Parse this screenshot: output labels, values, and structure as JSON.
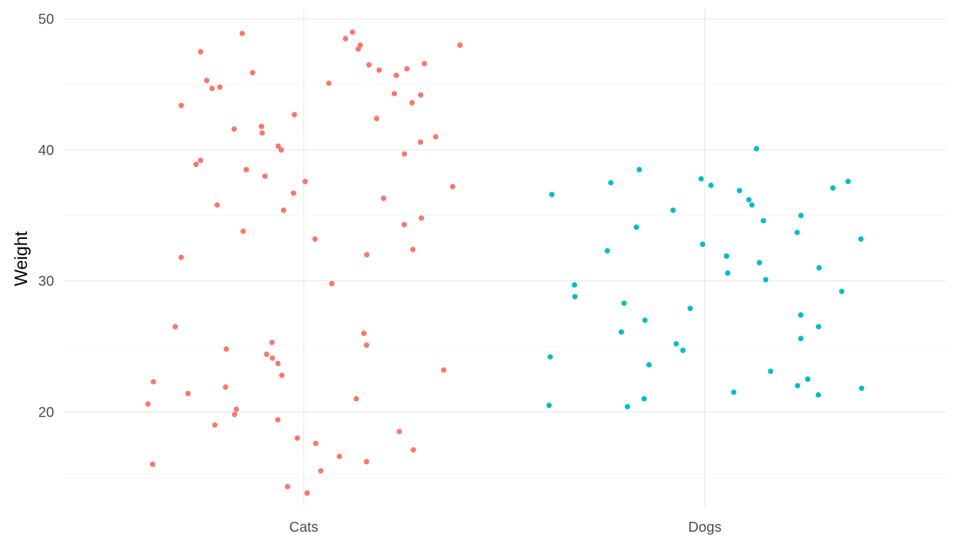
{
  "chart_data": {
    "type": "scatter",
    "title": "",
    "xlabel": "",
    "ylabel": "Weight",
    "categories": [
      "Cats",
      "Dogs"
    ],
    "ylim": [
      12.8,
      50.8
    ],
    "y_ticks": [
      20,
      30,
      40,
      50
    ],
    "y_tick_labels": [
      "20",
      "30",
      "40",
      "50"
    ],
    "grid": true,
    "legend": "none",
    "colors": {
      "Cats": "#f8766d",
      "Dogs": "#00bfc4"
    },
    "series": [
      {
        "category": "Cats",
        "distribution": "bimodal: upper cluster around 40, lower cluster around 20",
        "points": [
          {
            "x": "Cats",
            "y": 49.0
          },
          {
            "x": "Cats",
            "y": 48.9
          },
          {
            "x": "Cats",
            "y": 48.5
          },
          {
            "x": "Cats",
            "y": 48.0
          },
          {
            "x": "Cats",
            "y": 48.0
          },
          {
            "x": "Cats",
            "y": 47.7
          },
          {
            "x": "Cats",
            "y": 47.5
          },
          {
            "x": "Cats",
            "y": 46.6
          },
          {
            "x": "Cats",
            "y": 46.5
          },
          {
            "x": "Cats",
            "y": 46.2
          },
          {
            "x": "Cats",
            "y": 46.1
          },
          {
            "x": "Cats",
            "y": 45.9
          },
          {
            "x": "Cats",
            "y": 45.7
          },
          {
            "x": "Cats",
            "y": 45.3
          },
          {
            "x": "Cats",
            "y": 45.1
          },
          {
            "x": "Cats",
            "y": 44.8
          },
          {
            "x": "Cats",
            "y": 44.7
          },
          {
            "x": "Cats",
            "y": 44.3
          },
          {
            "x": "Cats",
            "y": 44.2
          },
          {
            "x": "Cats",
            "y": 43.6
          },
          {
            "x": "Cats",
            "y": 43.4
          },
          {
            "x": "Cats",
            "y": 42.7
          },
          {
            "x": "Cats",
            "y": 42.4
          },
          {
            "x": "Cats",
            "y": 41.8
          },
          {
            "x": "Cats",
            "y": 41.6
          },
          {
            "x": "Cats",
            "y": 41.3
          },
          {
            "x": "Cats",
            "y": 41.0
          },
          {
            "x": "Cats",
            "y": 40.6
          },
          {
            "x": "Cats",
            "y": 40.3
          },
          {
            "x": "Cats",
            "y": 40.0
          },
          {
            "x": "Cats",
            "y": 39.7
          },
          {
            "x": "Cats",
            "y": 39.2
          },
          {
            "x": "Cats",
            "y": 38.9
          },
          {
            "x": "Cats",
            "y": 38.5
          },
          {
            "x": "Cats",
            "y": 38.0
          },
          {
            "x": "Cats",
            "y": 37.6
          },
          {
            "x": "Cats",
            "y": 37.2
          },
          {
            "x": "Cats",
            "y": 36.7
          },
          {
            "x": "Cats",
            "y": 36.3
          },
          {
            "x": "Cats",
            "y": 35.8
          },
          {
            "x": "Cats",
            "y": 35.4
          },
          {
            "x": "Cats",
            "y": 34.8
          },
          {
            "x": "Cats",
            "y": 34.3
          },
          {
            "x": "Cats",
            "y": 33.8
          },
          {
            "x": "Cats",
            "y": 33.2
          },
          {
            "x": "Cats",
            "y": 32.4
          },
          {
            "x": "Cats",
            "y": 32.0
          },
          {
            "x": "Cats",
            "y": 31.8
          },
          {
            "x": "Cats",
            "y": 29.8
          },
          {
            "x": "Cats",
            "y": 26.5
          },
          {
            "x": "Cats",
            "y": 26.0
          },
          {
            "x": "Cats",
            "y": 25.3
          },
          {
            "x": "Cats",
            "y": 25.1
          },
          {
            "x": "Cats",
            "y": 24.8
          },
          {
            "x": "Cats",
            "y": 24.4
          },
          {
            "x": "Cats",
            "y": 24.1
          },
          {
            "x": "Cats",
            "y": 23.7
          },
          {
            "x": "Cats",
            "y": 23.2
          },
          {
            "x": "Cats",
            "y": 22.8
          },
          {
            "x": "Cats",
            "y": 22.3
          },
          {
            "x": "Cats",
            "y": 21.9
          },
          {
            "x": "Cats",
            "y": 21.4
          },
          {
            "x": "Cats",
            "y": 21.0
          },
          {
            "x": "Cats",
            "y": 20.6
          },
          {
            "x": "Cats",
            "y": 20.2
          },
          {
            "x": "Cats",
            "y": 19.8
          },
          {
            "x": "Cats",
            "y": 19.4
          },
          {
            "x": "Cats",
            "y": 19.0
          },
          {
            "x": "Cats",
            "y": 18.5
          },
          {
            "x": "Cats",
            "y": 18.0
          },
          {
            "x": "Cats",
            "y": 17.6
          },
          {
            "x": "Cats",
            "y": 17.1
          },
          {
            "x": "Cats",
            "y": 16.6
          },
          {
            "x": "Cats",
            "y": 16.2
          },
          {
            "x": "Cats",
            "y": 16.0
          },
          {
            "x": "Cats",
            "y": 15.5
          },
          {
            "x": "Cats",
            "y": 14.3
          },
          {
            "x": "Cats",
            "y": 13.8
          }
        ]
      },
      {
        "category": "Dogs",
        "distribution": "single cluster around 30",
        "points": [
          {
            "x": "Dogs",
            "y": 40.1
          },
          {
            "x": "Dogs",
            "y": 38.5
          },
          {
            "x": "Dogs",
            "y": 37.8
          },
          {
            "x": "Dogs",
            "y": 37.6
          },
          {
            "x": "Dogs",
            "y": 37.5
          },
          {
            "x": "Dogs",
            "y": 37.3
          },
          {
            "x": "Dogs",
            "y": 37.1
          },
          {
            "x": "Dogs",
            "y": 36.9
          },
          {
            "x": "Dogs",
            "y": 36.6
          },
          {
            "x": "Dogs",
            "y": 36.2
          },
          {
            "x": "Dogs",
            "y": 35.8
          },
          {
            "x": "Dogs",
            "y": 35.4
          },
          {
            "x": "Dogs",
            "y": 35.0
          },
          {
            "x": "Dogs",
            "y": 34.6
          },
          {
            "x": "Dogs",
            "y": 34.1
          },
          {
            "x": "Dogs",
            "y": 33.7
          },
          {
            "x": "Dogs",
            "y": 33.2
          },
          {
            "x": "Dogs",
            "y": 32.8
          },
          {
            "x": "Dogs",
            "y": 32.3
          },
          {
            "x": "Dogs",
            "y": 31.9
          },
          {
            "x": "Dogs",
            "y": 31.4
          },
          {
            "x": "Dogs",
            "y": 31.0
          },
          {
            "x": "Dogs",
            "y": 30.6
          },
          {
            "x": "Dogs",
            "y": 30.1
          },
          {
            "x": "Dogs",
            "y": 29.7
          },
          {
            "x": "Dogs",
            "y": 29.2
          },
          {
            "x": "Dogs",
            "y": 28.8
          },
          {
            "x": "Dogs",
            "y": 28.3
          },
          {
            "x": "Dogs",
            "y": 27.9
          },
          {
            "x": "Dogs",
            "y": 27.4
          },
          {
            "x": "Dogs",
            "y": 27.0
          },
          {
            "x": "Dogs",
            "y": 26.5
          },
          {
            "x": "Dogs",
            "y": 26.1
          },
          {
            "x": "Dogs",
            "y": 25.6
          },
          {
            "x": "Dogs",
            "y": 25.2
          },
          {
            "x": "Dogs",
            "y": 24.7
          },
          {
            "x": "Dogs",
            "y": 24.2
          },
          {
            "x": "Dogs",
            "y": 23.6
          },
          {
            "x": "Dogs",
            "y": 23.1
          },
          {
            "x": "Dogs",
            "y": 22.5
          },
          {
            "x": "Dogs",
            "y": 22.0
          },
          {
            "x": "Dogs",
            "y": 21.8
          },
          {
            "x": "Dogs",
            "y": 21.5
          },
          {
            "x": "Dogs",
            "y": 21.3
          },
          {
            "x": "Dogs",
            "y": 21.0
          },
          {
            "x": "Dogs",
            "y": 20.5
          },
          {
            "x": "Dogs",
            "y": 20.4
          }
        ]
      }
    ]
  }
}
